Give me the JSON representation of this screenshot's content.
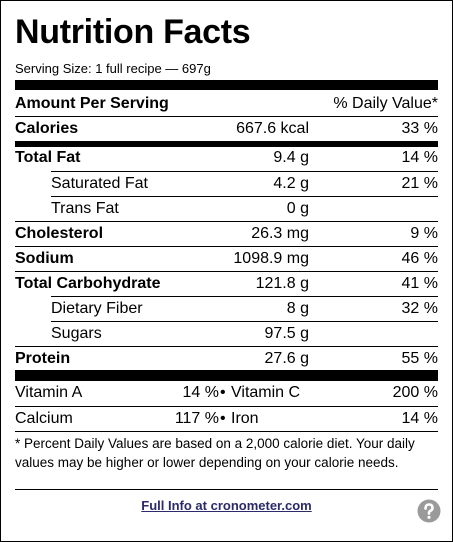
{
  "title": "Nutrition Facts",
  "serving_size": "Serving Size: 1 full recipe — 697g",
  "header": {
    "left": "Amount Per Serving",
    "right": "% Daily Value*"
  },
  "calories": {
    "name": "Calories",
    "amount": "667.6 kcal",
    "dv": "33 %"
  },
  "rows": [
    {
      "name": "Total Fat",
      "amount": "9.4 g",
      "dv": "14 %",
      "bold": true
    },
    {
      "name": "Saturated Fat",
      "amount": "4.2 g",
      "dv": "21 %",
      "indent": true
    },
    {
      "name": "Trans Fat",
      "amount": "0 g",
      "indent": true
    },
    {
      "name": "Cholesterol",
      "amount": "26.3 mg",
      "dv": "9 %",
      "bold": true
    },
    {
      "name": "Sodium",
      "amount": "1098.9 mg",
      "dv": "46 %",
      "bold": true
    },
    {
      "name": "Total Carbohydrate",
      "amount": "121.8 g",
      "dv": "41 %",
      "bold": true
    },
    {
      "name": "Dietary Fiber",
      "amount": "8 g",
      "dv": "32 %",
      "indent": true
    },
    {
      "name": "Sugars",
      "amount": "97.5 g",
      "indent": true
    },
    {
      "name": "Protein",
      "amount": "27.6 g",
      "dv": "55 %",
      "bold": true
    }
  ],
  "separator": "•",
  "vitamins": [
    [
      {
        "name": "Vitamin A",
        "dv": "14 %"
      },
      {
        "name": "Vitamin C",
        "dv": "200 %"
      }
    ],
    [
      {
        "name": "Calcium",
        "dv": "117 %"
      },
      {
        "name": "Iron",
        "dv": "14 %"
      }
    ]
  ],
  "footnote": "* Percent Daily Values are based on a 2,000 calorie diet. Your daily values may be higher or lower depending on your calorie needs.",
  "link": "Full Info at cronometer.com"
}
